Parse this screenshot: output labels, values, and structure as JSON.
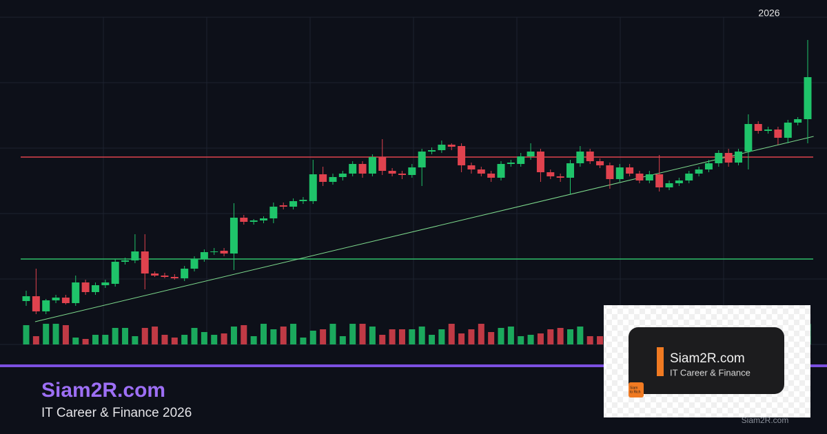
{
  "chart_data": {
    "type": "candlestick",
    "x_label": "2026",
    "ylim": [
      0,
      475
    ],
    "yticks": [
      0,
      95,
      190,
      285,
      380,
      475
    ],
    "grid": true,
    "up_color": "#1fc46a",
    "down_color": "#e0424e",
    "candles": [
      [
        63,
        78,
        56,
        70
      ],
      [
        70,
        110,
        44,
        48
      ],
      [
        48,
        66,
        44,
        64
      ],
      [
        64,
        72,
        60,
        68
      ],
      [
        68,
        72,
        58,
        60
      ],
      [
        60,
        100,
        56,
        90
      ],
      [
        90,
        94,
        72,
        76
      ],
      [
        76,
        90,
        72,
        86
      ],
      [
        86,
        94,
        82,
        90
      ],
      [
        88,
        124,
        84,
        120
      ],
      [
        120,
        126,
        116,
        122
      ],
      [
        122,
        160,
        118,
        135
      ],
      [
        135,
        160,
        80,
        103
      ],
      [
        103,
        106,
        98,
        100
      ],
      [
        100,
        104,
        96,
        98
      ],
      [
        98,
        102,
        94,
        96
      ],
      [
        96,
        114,
        92,
        110
      ],
      [
        110,
        128,
        106,
        124
      ],
      [
        124,
        138,
        120,
        134
      ],
      [
        134,
        140,
        130,
        135
      ],
      [
        136,
        140,
        128,
        132
      ],
      [
        132,
        205,
        108,
        184
      ],
      [
        184,
        188,
        174,
        178
      ],
      [
        178,
        182,
        174,
        180
      ],
      [
        180,
        186,
        176,
        183
      ],
      [
        183,
        206,
        176,
        200
      ],
      [
        202,
        206,
        196,
        200
      ],
      [
        200,
        212,
        196,
        208
      ],
      [
        208,
        214,
        204,
        210
      ],
      [
        208,
        268,
        204,
        247
      ],
      [
        247,
        258,
        230,
        236
      ],
      [
        236,
        248,
        232,
        243
      ],
      [
        243,
        252,
        238,
        248
      ],
      [
        248,
        266,
        244,
        262
      ],
      [
        262,
        266,
        242,
        248
      ],
      [
        248,
        276,
        244,
        272
      ],
      [
        272,
        298,
        246,
        252
      ],
      [
        252,
        256,
        244,
        248
      ],
      [
        248,
        252,
        240,
        246
      ],
      [
        246,
        262,
        242,
        257
      ],
      [
        257,
        284,
        230,
        280
      ],
      [
        280,
        286,
        276,
        282
      ],
      [
        282,
        296,
        278,
        290
      ],
      [
        290,
        292,
        282,
        287
      ],
      [
        288,
        292,
        250,
        260
      ],
      [
        260,
        264,
        248,
        254
      ],
      [
        254,
        258,
        244,
        248
      ],
      [
        248,
        252,
        236,
        242
      ],
      [
        242,
        266,
        238,
        262
      ],
      [
        262,
        268,
        258,
        264
      ],
      [
        262,
        278,
        258,
        273
      ],
      [
        273,
        292,
        268,
        280
      ],
      [
        280,
        284,
        236,
        250
      ],
      [
        250,
        254,
        240,
        244
      ],
      [
        244,
        248,
        236,
        242
      ],
      [
        242,
        268,
        218,
        263
      ],
      [
        263,
        288,
        258,
        280
      ],
      [
        280,
        284,
        262,
        266
      ],
      [
        266,
        270,
        256,
        260
      ],
      [
        260,
        264,
        226,
        240
      ],
      [
        240,
        262,
        236,
        257
      ],
      [
        257,
        262,
        244,
        248
      ],
      [
        248,
        252,
        234,
        238
      ],
      [
        238,
        252,
        234,
        247
      ],
      [
        247,
        275,
        222,
        228
      ],
      [
        228,
        238,
        224,
        234
      ],
      [
        234,
        242,
        230,
        238
      ],
      [
        238,
        252,
        234,
        248
      ],
      [
        248,
        258,
        244,
        254
      ],
      [
        254,
        268,
        250,
        263
      ],
      [
        263,
        282,
        258,
        278
      ],
      [
        278,
        284,
        258,
        264
      ],
      [
        264,
        284,
        260,
        280
      ],
      [
        280,
        334,
        254,
        320
      ],
      [
        320,
        324,
        306,
        310
      ],
      [
        310,
        316,
        306,
        312
      ],
      [
        312,
        316,
        290,
        300
      ],
      [
        300,
        326,
        292,
        322
      ],
      [
        322,
        330,
        318,
        327
      ],
      [
        327,
        442,
        292,
        388
      ]
    ],
    "volume_lim": [
      0,
      100
    ],
    "volume": [
      28,
      12,
      30,
      30,
      28,
      10,
      8,
      14,
      14,
      24,
      24,
      12,
      24,
      26,
      14,
      10,
      14,
      24,
      18,
      14,
      16,
      26,
      28,
      12,
      30,
      22,
      26,
      30,
      10,
      20,
      22,
      30,
      12,
      30,
      30,
      26,
      14,
      22,
      22,
      22,
      26,
      14,
      22,
      30,
      16,
      22,
      30,
      18,
      24,
      26,
      12,
      14,
      16,
      22,
      24,
      22,
      26,
      12,
      12,
      14,
      22,
      16,
      18,
      20,
      22,
      24,
      24,
      26,
      20,
      22,
      26,
      28,
      14,
      24,
      22,
      18,
      16,
      26,
      22,
      30
    ],
    "resistance": {
      "value": 272,
      "color": "#e0424e"
    },
    "support": {
      "value": 124,
      "color": "#2fbf6a"
    },
    "trendline": {
      "from": [
        0.9,
        33
      ],
      "to": [
        79.6,
        302
      ],
      "color": "#7fdc8e"
    }
  },
  "branding": {
    "title": "Siam2R.com",
    "subtitle": "IT Career & Finance 2026"
  },
  "logo_card": {
    "title": "Siam2R.com",
    "subtitle": "IT Career & Finance",
    "icon_text": [
      "Siam",
      "to Rich"
    ],
    "watermark": "Siam2R.com"
  }
}
